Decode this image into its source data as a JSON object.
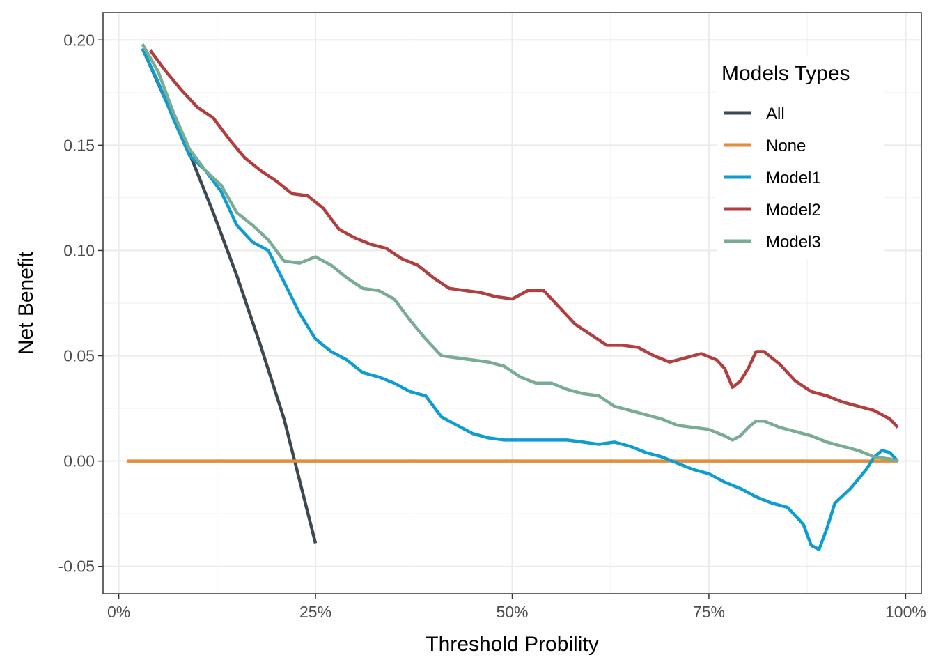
{
  "chart_data": {
    "type": "line",
    "title": "",
    "xlabel": "Threshold Probility",
    "ylabel": "Net Benefit",
    "xlim": [
      -0.02,
      1.02
    ],
    "ylim": [
      -0.063,
      0.213
    ],
    "x_ticks": [
      {
        "value": 0,
        "label": "0%"
      },
      {
        "value": 0.25,
        "label": "25%"
      },
      {
        "value": 0.5,
        "label": "50%"
      },
      {
        "value": 0.75,
        "label": "75%"
      },
      {
        "value": 1.0,
        "label": "100%"
      }
    ],
    "y_ticks": [
      {
        "value": -0.05,
        "label": "-0.05"
      },
      {
        "value": 0.0,
        "label": "0.00"
      },
      {
        "value": 0.05,
        "label": "0.05"
      },
      {
        "value": 0.1,
        "label": "0.10"
      },
      {
        "value": 0.15,
        "label": "0.15"
      },
      {
        "value": 0.2,
        "label": "0.20"
      }
    ],
    "grid": true,
    "legend": {
      "title": "Models Types",
      "position": "top-right"
    },
    "series": [
      {
        "name": "All",
        "color": "#3b4952",
        "x": [
          0.03,
          0.06,
          0.09,
          0.12,
          0.15,
          0.18,
          0.21,
          0.25
        ],
        "y": [
          0.196,
          0.171,
          0.146,
          0.118,
          0.088,
          0.055,
          0.02,
          -0.039
        ]
      },
      {
        "name": "None",
        "color": "#e08d3c",
        "x": [
          0.01,
          0.99
        ],
        "y": [
          0.0,
          0.0
        ]
      },
      {
        "name": "Model1",
        "color": "#0f9dd1",
        "x": [
          0.03,
          0.05,
          0.07,
          0.09,
          0.11,
          0.13,
          0.15,
          0.17,
          0.19,
          0.21,
          0.23,
          0.25,
          0.27,
          0.29,
          0.31,
          0.33,
          0.35,
          0.37,
          0.39,
          0.41,
          0.43,
          0.45,
          0.47,
          0.49,
          0.51,
          0.53,
          0.55,
          0.57,
          0.59,
          0.61,
          0.63,
          0.65,
          0.67,
          0.69,
          0.71,
          0.73,
          0.75,
          0.77,
          0.79,
          0.81,
          0.83,
          0.85,
          0.87,
          0.88,
          0.89,
          0.9,
          0.91,
          0.93,
          0.95,
          0.96,
          0.97,
          0.98,
          0.99
        ],
        "y": [
          0.196,
          0.18,
          0.162,
          0.145,
          0.138,
          0.128,
          0.112,
          0.104,
          0.1,
          0.085,
          0.07,
          0.058,
          0.052,
          0.048,
          0.042,
          0.04,
          0.037,
          0.033,
          0.031,
          0.021,
          0.017,
          0.013,
          0.011,
          0.01,
          0.01,
          0.01,
          0.01,
          0.01,
          0.009,
          0.008,
          0.009,
          0.007,
          0.004,
          0.002,
          -0.001,
          -0.004,
          -0.006,
          -0.01,
          -0.013,
          -0.017,
          -0.02,
          -0.022,
          -0.03,
          -0.04,
          -0.042,
          -0.032,
          -0.02,
          -0.013,
          -0.004,
          0.002,
          0.005,
          0.004,
          0.0
        ]
      },
      {
        "name": "Model2",
        "color": "#b13f3f",
        "x": [
          0.04,
          0.06,
          0.08,
          0.1,
          0.12,
          0.14,
          0.16,
          0.18,
          0.2,
          0.22,
          0.24,
          0.26,
          0.28,
          0.3,
          0.32,
          0.34,
          0.36,
          0.38,
          0.4,
          0.42,
          0.44,
          0.46,
          0.48,
          0.5,
          0.52,
          0.54,
          0.56,
          0.58,
          0.6,
          0.62,
          0.64,
          0.66,
          0.68,
          0.7,
          0.72,
          0.74,
          0.76,
          0.77,
          0.78,
          0.79,
          0.8,
          0.81,
          0.82,
          0.84,
          0.86,
          0.88,
          0.9,
          0.92,
          0.94,
          0.96,
          0.98,
          0.99
        ],
        "y": [
          0.195,
          0.185,
          0.176,
          0.168,
          0.163,
          0.153,
          0.144,
          0.138,
          0.133,
          0.127,
          0.126,
          0.12,
          0.11,
          0.106,
          0.103,
          0.101,
          0.096,
          0.093,
          0.087,
          0.082,
          0.081,
          0.08,
          0.078,
          0.077,
          0.081,
          0.081,
          0.073,
          0.065,
          0.06,
          0.055,
          0.055,
          0.054,
          0.05,
          0.047,
          0.049,
          0.051,
          0.048,
          0.044,
          0.035,
          0.038,
          0.044,
          0.052,
          0.052,
          0.046,
          0.038,
          0.033,
          0.031,
          0.028,
          0.026,
          0.024,
          0.02,
          0.016
        ]
      },
      {
        "name": "Model3",
        "color": "#79ac93",
        "x": [
          0.03,
          0.05,
          0.07,
          0.09,
          0.11,
          0.13,
          0.15,
          0.17,
          0.19,
          0.21,
          0.23,
          0.25,
          0.27,
          0.29,
          0.31,
          0.33,
          0.35,
          0.37,
          0.39,
          0.41,
          0.43,
          0.45,
          0.47,
          0.49,
          0.51,
          0.53,
          0.55,
          0.57,
          0.59,
          0.61,
          0.63,
          0.65,
          0.67,
          0.69,
          0.71,
          0.73,
          0.75,
          0.77,
          0.78,
          0.79,
          0.8,
          0.81,
          0.82,
          0.84,
          0.86,
          0.88,
          0.9,
          0.92,
          0.94,
          0.96,
          0.98,
          0.99
        ],
        "y": [
          0.198,
          0.185,
          0.165,
          0.148,
          0.138,
          0.131,
          0.118,
          0.112,
          0.105,
          0.095,
          0.094,
          0.097,
          0.093,
          0.087,
          0.082,
          0.081,
          0.077,
          0.067,
          0.058,
          0.05,
          0.049,
          0.048,
          0.047,
          0.045,
          0.04,
          0.037,
          0.037,
          0.034,
          0.032,
          0.031,
          0.026,
          0.024,
          0.022,
          0.02,
          0.017,
          0.016,
          0.015,
          0.012,
          0.01,
          0.012,
          0.016,
          0.019,
          0.019,
          0.016,
          0.014,
          0.012,
          0.009,
          0.007,
          0.005,
          0.002,
          0.001,
          0.0
        ]
      }
    ]
  }
}
